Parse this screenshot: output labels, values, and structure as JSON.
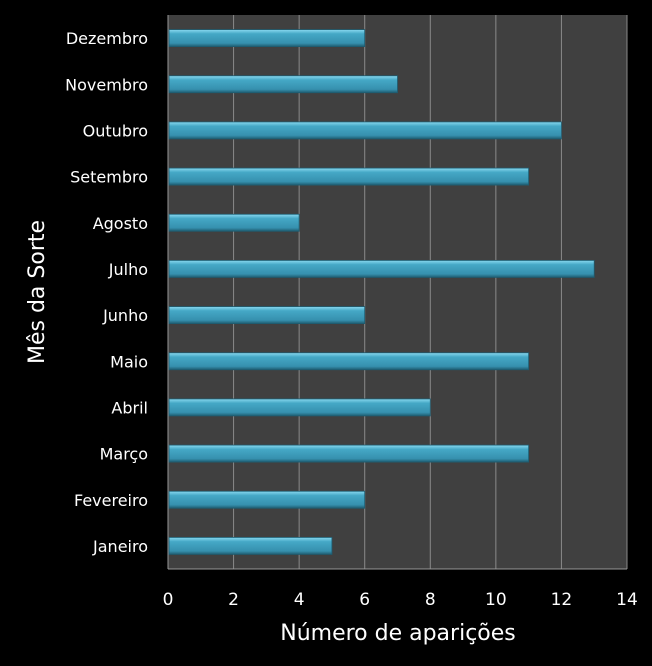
{
  "chart_data": {
    "type": "bar",
    "orientation": "horizontal",
    "categories": [
      "Janeiro",
      "Fevereiro",
      "Março",
      "Abril",
      "Maio",
      "Junho",
      "Julho",
      "Agosto",
      "Setembro",
      "Outubro",
      "Novembro",
      "Dezembro"
    ],
    "values": [
      5,
      6,
      11,
      8,
      11,
      6,
      13,
      4,
      11,
      12,
      7,
      6
    ],
    "title": "",
    "xlabel": "Número de aparições",
    "ylabel": "Mês da Sorte",
    "xlim": [
      0,
      14
    ],
    "xticks": [
      "0",
      "2",
      "4",
      "6",
      "8",
      "10",
      "12",
      "14"
    ],
    "grid": true,
    "legend": "none",
    "colors": {
      "bar": "#3a9bba",
      "bar_highlight": "#7fd3ec",
      "plot_background": "#404040",
      "page_background": "#000000",
      "gridline": "#8a8a8a"
    }
  }
}
